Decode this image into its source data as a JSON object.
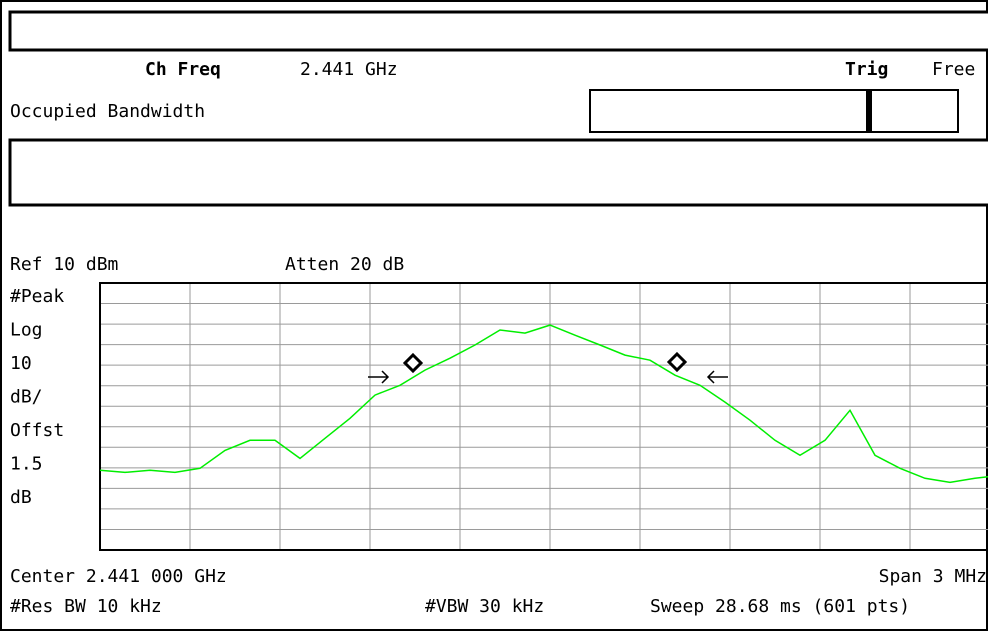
{
  "header": {
    "ch_freq_label": "Ch Freq",
    "ch_freq_value": "2.441 GHz",
    "trig_label": "Trig",
    "trig_value": "Free",
    "measurement": "Occupied Bandwidth"
  },
  "screen": {
    "ref": "Ref 10 dBm",
    "atten": "Atten 20 dB",
    "left_labels": [
      "#Peak",
      "Log",
      "10",
      "dB/",
      "Offst",
      "1.5",
      "dB"
    ],
    "center": "Center 2.441 000 GHz",
    "span": "Span 3 MHz",
    "res_bw": "#Res BW 10 kHz",
    "vbw": "#VBW 30 kHz",
    "sweep": "Sweep 28.68 ms (601 pts)"
  },
  "trace": {
    "color": "#00ee00",
    "ylim": [
      -120,
      10
    ],
    "values": [
      -81.2,
      -82.2,
      -81.2,
      -82.2,
      -80.2,
      -71.5,
      -66.6,
      -66.6,
      -75.4,
      -65.6,
      -55.9,
      -44.6,
      -39.8,
      -32.4,
      -26.6,
      -20.2,
      -12.9,
      -14.4,
      -10.5,
      -15.4,
      -20.2,
      -25.1,
      -27.6,
      -34.9,
      -39.8,
      -48.0,
      -56.8,
      -66.6,
      -73.9,
      -66.6,
      -52.0,
      -73.9,
      -80.2,
      -85.1,
      -87.1,
      -85.1,
      -83.7
    ]
  }
}
